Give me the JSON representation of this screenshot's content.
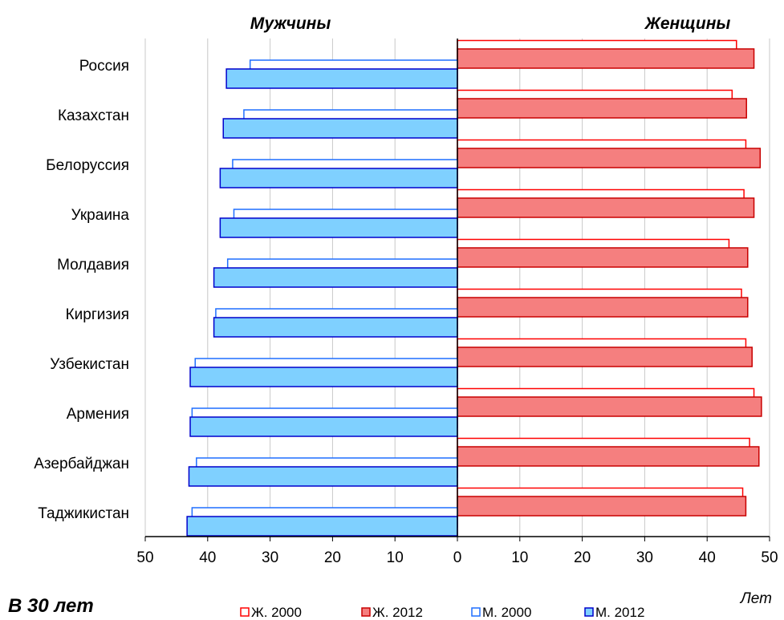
{
  "chart_data": {
    "type": "bar",
    "orientation": "horizontal-pyramid",
    "left_title": "Мужчины",
    "right_title": "Женщины",
    "caption": "В 30 лет",
    "axis_unit_label": "Лет",
    "xlim": [
      0,
      50
    ],
    "x_ticks": [
      "50",
      "40",
      "30",
      "20",
      "10",
      "0",
      "10",
      "20",
      "30",
      "40",
      "50"
    ],
    "grid": true,
    "categories": [
      "Россия",
      "Казахстан",
      "Белоруссия",
      "Украина",
      "Молдавия",
      "Киргизия",
      "Узбекистан",
      "Армения",
      "Азербайджан",
      "Таджикистан"
    ],
    "series": [
      {
        "name": "Ж. 2000",
        "side": "right",
        "style": "outline",
        "values": [
          44.7,
          44.0,
          46.2,
          45.9,
          43.5,
          45.5,
          46.2,
          47.5,
          46.8,
          45.7
        ]
      },
      {
        "name": "Ж. 2012",
        "side": "right",
        "style": "filled",
        "values": [
          47.5,
          46.3,
          48.5,
          47.5,
          46.5,
          46.5,
          47.2,
          48.7,
          48.3,
          46.2
        ]
      },
      {
        "name": "М. 2000",
        "side": "left",
        "style": "outline",
        "values": [
          33.2,
          34.2,
          36.0,
          35.8,
          36.8,
          38.7,
          42.0,
          42.5,
          41.8,
          42.5
        ]
      },
      {
        "name": "М. 2012",
        "side": "left",
        "style": "filled",
        "values": [
          37.0,
          37.5,
          38.0,
          38.0,
          39.0,
          39.0,
          42.8,
          42.8,
          43.0,
          43.3
        ]
      }
    ],
    "legend_position": "bottom",
    "colors": {
      "female_outline": "#ff0000",
      "female_fill": "#f57f7f",
      "female_stroke": "#c80000",
      "male_outline": "#1f6fff",
      "male_fill": "#7fd0ff",
      "male_stroke": "#0000cc",
      "grid": "#c8c8c8",
      "axis": "#000000"
    }
  }
}
